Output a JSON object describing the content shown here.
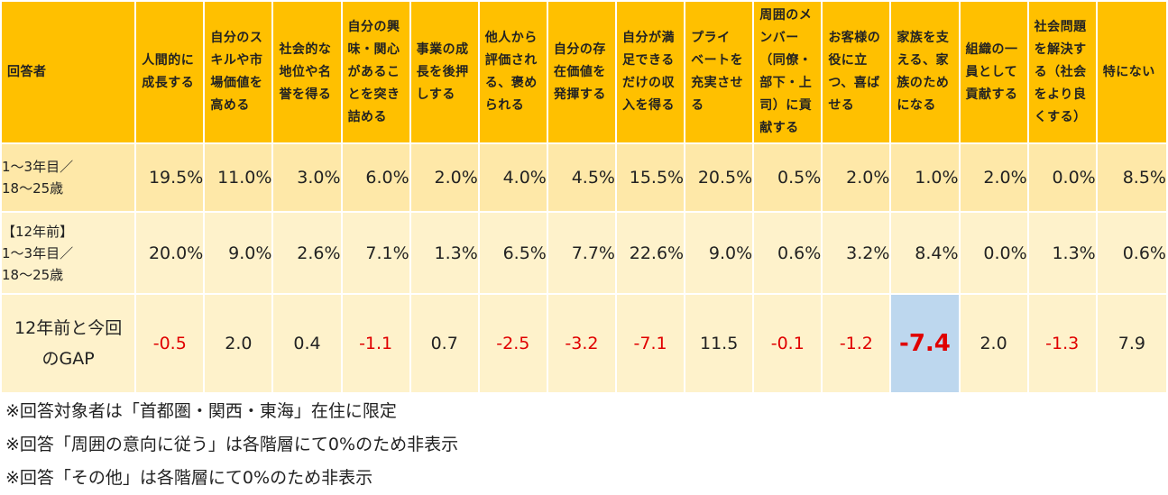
{
  "chart_data": {
    "type": "table",
    "headers": [
      "回答者",
      [
        "人間的に",
        "成長する"
      ],
      [
        "自分のス",
        "キルや市",
        "場価値を",
        "高める"
      ],
      [
        "社会的な",
        "地位や名",
        "誉を得る"
      ],
      [
        "自分の興",
        "味・関心",
        "があるこ",
        "とを突き",
        "詰める"
      ],
      [
        "事業の成",
        "長を後押",
        "しする"
      ],
      [
        "他人から",
        "評価され",
        "る、褒め",
        "られる"
      ],
      [
        "自分の存",
        "在価値を",
        "発揮する"
      ],
      [
        "自分が満",
        "足できる",
        "だけの収",
        "入を得る"
      ],
      [
        "プライ",
        "ベートを",
        "充実させ",
        "る"
      ],
      [
        "周囲のメ",
        "ンバー",
        "（同僚・",
        "部下・上",
        "司）に貢",
        "献する"
      ],
      [
        "お客様の",
        "役に立",
        "つ、喜ば",
        "せる"
      ],
      [
        "家族を支",
        "える、家",
        "族のため",
        "になる"
      ],
      [
        "組織の一",
        "員として",
        "貢献する"
      ],
      [
        "社会問題",
        "を解決す",
        "る（社会",
        "をより良",
        "くする）"
      ],
      [
        "特にない"
      ]
    ],
    "rows": [
      {
        "label": [
          "1～3年目／",
          "18～25歳"
        ],
        "values": [
          "19.5%",
          "11.0%",
          "3.0%",
          "6.0%",
          "2.0%",
          "4.0%",
          "4.5%",
          "15.5%",
          "20.5%",
          "0.5%",
          "2.0%",
          "1.0%",
          "2.0%",
          "0.0%",
          "8.5%"
        ]
      },
      {
        "label": [
          "【12年前】",
          "1～3年目／",
          "18～25歳"
        ],
        "values": [
          "20.0%",
          "9.0%",
          "2.6%",
          "7.1%",
          "1.3%",
          "6.5%",
          "7.7%",
          "22.6%",
          "9.0%",
          "0.6%",
          "3.2%",
          "8.4%",
          "0.0%",
          "1.3%",
          "0.6%"
        ]
      },
      {
        "label": [
          "12年前と今回",
          "のGAP"
        ],
        "values": [
          "-0.5",
          "2.0",
          "0.4",
          "-1.1",
          "0.7",
          "-2.5",
          "-3.2",
          "-7.1",
          "11.5",
          "-0.1",
          "-1.2",
          "-7.4",
          "2.0",
          "-1.3",
          "7.9"
        ]
      }
    ],
    "highlight": {
      "row": 2,
      "col": 11,
      "color": "#bdd7ee"
    },
    "negative_color": "#e00000",
    "header_color": "#ffc000"
  },
  "notes": [
    "※回答対象者は「首都圏・関西・東海」在住に限定",
    "※回答「周囲の意向に従う」は各階層にて0%のため非表示",
    "※回答「その他」は各階層にて0%のため非表示"
  ]
}
